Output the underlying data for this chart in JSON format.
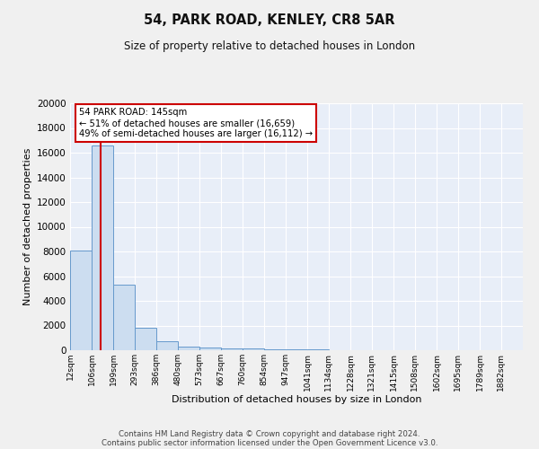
{
  "title1": "54, PARK ROAD, KENLEY, CR8 5AR",
  "title2": "Size of property relative to detached houses in London",
  "xlabel": "Distribution of detached houses by size in London",
  "ylabel": "Number of detached properties",
  "bin_labels": [
    "12sqm",
    "106sqm",
    "199sqm",
    "293sqm",
    "386sqm",
    "480sqm",
    "573sqm",
    "667sqm",
    "760sqm",
    "854sqm",
    "947sqm",
    "1041sqm",
    "1134sqm",
    "1228sqm",
    "1321sqm",
    "1415sqm",
    "1508sqm",
    "1602sqm",
    "1695sqm",
    "1789sqm",
    "1882sqm"
  ],
  "bin_edges": [
    12,
    106,
    199,
    293,
    386,
    480,
    573,
    667,
    760,
    854,
    947,
    1041,
    1134,
    1228,
    1321,
    1415,
    1508,
    1602,
    1695,
    1789,
    1882
  ],
  "bar_heights": [
    8100,
    16600,
    5300,
    1850,
    700,
    300,
    220,
    170,
    150,
    100,
    60,
    40,
    30,
    20,
    15,
    10,
    8,
    6,
    5,
    4
  ],
  "bar_color": "#ccddf0",
  "bar_edge_color": "#6699cc",
  "background_color": "#e8eef8",
  "grid_color": "#ffffff",
  "property_line_x": 145,
  "property_line_color": "#cc0000",
  "annotation_text": "54 PARK ROAD: 145sqm\n← 51% of detached houses are smaller (16,659)\n49% of semi-detached houses are larger (16,112) →",
  "annotation_box_color": "#ffffff",
  "annotation_box_edge": "#cc0000",
  "ylim": [
    0,
    20000
  ],
  "yticks": [
    0,
    2000,
    4000,
    6000,
    8000,
    10000,
    12000,
    14000,
    16000,
    18000,
    20000
  ],
  "footer1": "Contains HM Land Registry data © Crown copyright and database right 2024.",
  "footer2": "Contains public sector information licensed under the Open Government Licence v3.0.",
  "fig_bg": "#f0f0f0"
}
